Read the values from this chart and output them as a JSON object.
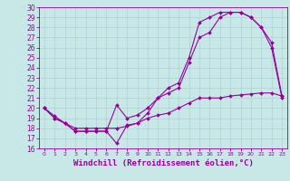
{
  "xlabel": "Windchill (Refroidissement éolien,°C)",
  "bg_color": "#c8e8e8",
  "line_color": "#990099",
  "xlim": [
    -0.5,
    23.5
  ],
  "ylim": [
    16,
    30
  ],
  "xticks": [
    0,
    1,
    2,
    3,
    4,
    5,
    6,
    7,
    8,
    9,
    10,
    11,
    12,
    13,
    14,
    15,
    16,
    17,
    18,
    19,
    20,
    21,
    22,
    23
  ],
  "yticks": [
    16,
    17,
    18,
    19,
    20,
    21,
    22,
    23,
    24,
    25,
    26,
    27,
    28,
    29,
    30
  ],
  "line1_x": [
    0,
    1,
    2,
    3,
    4,
    5,
    6,
    7,
    8,
    9,
    10,
    11,
    12,
    13,
    14,
    15,
    16,
    17,
    18,
    19,
    20,
    21,
    22,
    23
  ],
  "line1_y": [
    20,
    19,
    18.5,
    17.7,
    17.7,
    17.7,
    17.7,
    16.5,
    18.3,
    18.5,
    19.5,
    21,
    21.5,
    22,
    24.5,
    27,
    27.5,
    29,
    29.5,
    29.5,
    29,
    28,
    26,
    21
  ],
  "line2_x": [
    0,
    1,
    2,
    3,
    4,
    5,
    6,
    7,
    8,
    9,
    10,
    11,
    12,
    13,
    14,
    15,
    16,
    17,
    18,
    19,
    20,
    21,
    22,
    23
  ],
  "line2_y": [
    20,
    19,
    18.5,
    17.7,
    17.7,
    17.7,
    17.7,
    20.3,
    19,
    19.3,
    20,
    21,
    22,
    22.5,
    25,
    28.5,
    29,
    29.5,
    29.5,
    29.5,
    29,
    28,
    26.5,
    21.2
  ],
  "line3_x": [
    0,
    1,
    2,
    3,
    4,
    5,
    6,
    7,
    8,
    9,
    10,
    11,
    12,
    13,
    14,
    15,
    16,
    17,
    18,
    19,
    20,
    21,
    22,
    23
  ],
  "line3_y": [
    20,
    19.2,
    18.5,
    18,
    18,
    18,
    18,
    18,
    18.2,
    18.5,
    19,
    19.3,
    19.5,
    20,
    20.5,
    21,
    21,
    21,
    21.2,
    21.3,
    21.4,
    21.5,
    21.5,
    21.2
  ],
  "grid_color": "#aacccc",
  "marker": "D",
  "markersize": 2.0,
  "linewidth": 0.8,
  "xlabel_fontsize": 6.5,
  "ytick_fontsize": 5.5,
  "xtick_fontsize": 4.5
}
